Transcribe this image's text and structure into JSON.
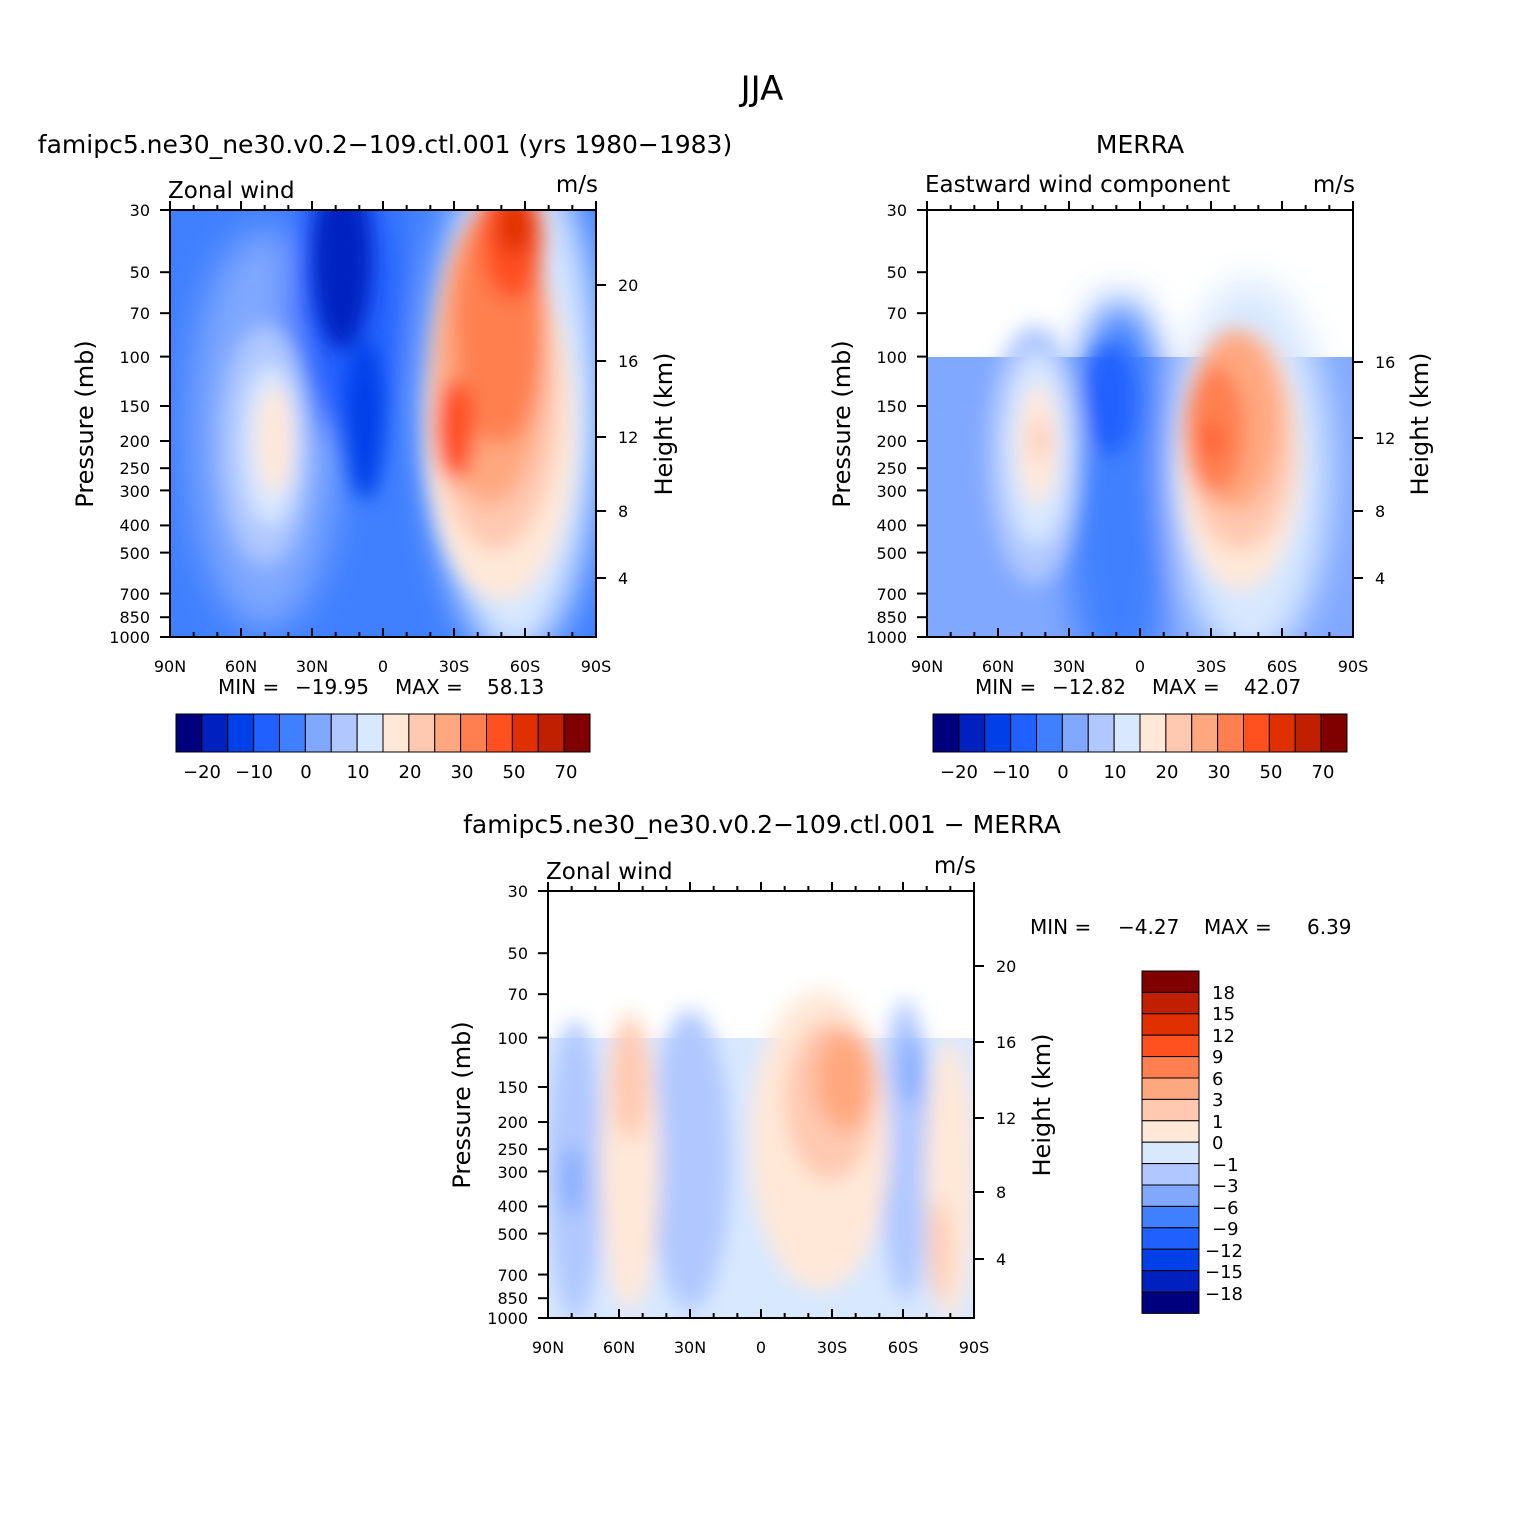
{
  "title": "JJA",
  "legend_labels_full": [
    "−20",
    "−10",
    "0",
    "10",
    "20",
    "30",
    "50",
    "70"
  ],
  "legend_labels_diff": [
    "18",
    "15",
    "12",
    "9",
    "6",
    "3",
    "1",
    "0",
    "−1",
    "−3",
    "−6",
    "−9",
    "−12",
    "−15",
    "−18"
  ],
  "colors_full": [
    "#00007f",
    "#0020c0",
    "#0040e8",
    "#2060ff",
    "#4080ff",
    "#80a8ff",
    "#b0c8ff",
    "#d8e8ff",
    "#ffe8d8",
    "#ffc8b0",
    "#ffa880",
    "#ff7f50",
    "#ff5020",
    "#e03000",
    "#c02000",
    "#800000"
  ],
  "colors_diff": [
    "#800000",
    "#c02000",
    "#e03000",
    "#ff5020",
    "#ff7f50",
    "#ffa880",
    "#ffc8b0",
    "#ffe8d8",
    "#d8e8ff",
    "#b0c8ff",
    "#80a8ff",
    "#4080ff",
    "#2060ff",
    "#0040e8",
    "#0020c0",
    "#00007f"
  ],
  "chart_data": [
    {
      "type": "heatmap",
      "title": "famipc5.ne30_ne30.v0.2−109.ctl.001 (yrs 1980−1983)",
      "subtitle_left": "Zonal wind",
      "subtitle_right": "m/s",
      "ylabel": "Pressure (mb)",
      "ylabel_right": "Height (km)",
      "x_ticks": [
        "90N",
        "60N",
        "30N",
        "0",
        "30S",
        "60S",
        "90S"
      ],
      "y_ticks": [
        "30",
        "50",
        "70",
        "100",
        "150",
        "200",
        "250",
        "300",
        "400",
        "500",
        "700",
        "850",
        "1000"
      ],
      "y_ticks_right": [
        "20",
        "16",
        "12",
        "8",
        "4"
      ],
      "min_label": "MIN =",
      "min": "−19.95",
      "max_label": "MAX =",
      "max": "58.13",
      "ylim": [
        1000,
        30
      ]
    },
    {
      "type": "heatmap",
      "title": "MERRA",
      "subtitle_left": "Eastward wind component",
      "subtitle_right": "m/s",
      "ylabel": "Pressure (mb)",
      "ylabel_right": "Height (km)",
      "x_ticks": [
        "90N",
        "60N",
        "30N",
        "0",
        "30S",
        "60S",
        "90S"
      ],
      "y_ticks": [
        "30",
        "50",
        "70",
        "100",
        "150",
        "200",
        "250",
        "300",
        "400",
        "500",
        "700",
        "850",
        "1000"
      ],
      "y_ticks_right": [
        "16",
        "12",
        "8",
        "4"
      ],
      "min_label": "MIN =",
      "min": "−12.82",
      "max_label": "MAX =",
      "max": "42.07",
      "ylim": [
        1000,
        30
      ]
    },
    {
      "type": "heatmap",
      "title": "famipc5.ne30_ne30.v0.2−109.ctl.001 − MERRA",
      "subtitle_left": "Zonal wind",
      "subtitle_right": "m/s",
      "ylabel": "Pressure (mb)",
      "ylabel_right": "Height (km)",
      "x_ticks": [
        "90N",
        "60N",
        "30N",
        "0",
        "30S",
        "60S",
        "90S"
      ],
      "y_ticks": [
        "30",
        "50",
        "70",
        "100",
        "150",
        "200",
        "250",
        "300",
        "400",
        "500",
        "700",
        "850",
        "1000"
      ],
      "y_ticks_right": [
        "20",
        "16",
        "12",
        "8",
        "4"
      ],
      "min_label": "MIN =",
      "min": "−4.27",
      "max_label": "MAX =",
      "max": "6.39",
      "ylim": [
        1000,
        30
      ]
    }
  ]
}
